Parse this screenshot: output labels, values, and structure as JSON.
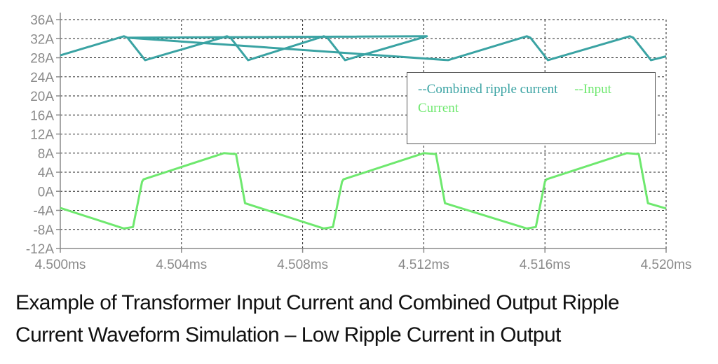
{
  "chart_data": {
    "type": "line",
    "xlabel": "",
    "ylabel": "",
    "x_ticks": [
      "4.500ms",
      "4.504ms",
      "4.508ms",
      "4.512ms",
      "4.516ms",
      "4.520ms"
    ],
    "y_ticks": [
      "36A",
      "32A",
      "28A",
      "24A",
      "20A",
      "16A",
      "12A",
      "8A",
      "4A",
      "0A",
      "-4A",
      "-8A",
      "-12A"
    ],
    "xlim": [
      4.5,
      4.52
    ],
    "ylim": [
      -12,
      36
    ],
    "grid": true,
    "legend": {
      "placement": "upper-right",
      "line1": "--Combined ripple current      --Input",
      "line2": "Current"
    },
    "series": [
      {
        "name": "Combined ripple current",
        "color": "#3aa3a3",
        "x": [
          4.5,
          4.5021,
          4.50222,
          4.5028,
          4.5055,
          4.50562,
          4.5062,
          4.5087,
          4.50882,
          4.5094,
          4.5121,
          4.50222,
          4.5128,
          4.5154,
          4.51552,
          4.5161,
          4.5188,
          4.51892,
          4.5195,
          4.52
        ],
        "y": [
          28.5,
          32.5,
          32.2,
          27.5,
          32.5,
          32.2,
          27.5,
          32.5,
          32.2,
          27.5,
          32.5,
          32.2,
          27.5,
          32.5,
          32.2,
          27.5,
          32.5,
          32.2,
          27.5,
          28.3
        ]
      },
      {
        "name": "Input Current",
        "color": "#6ee86e",
        "x": [
          4.5,
          4.5021,
          4.5024,
          4.5027,
          4.50275,
          4.5054,
          4.5058,
          4.5061,
          4.5087,
          4.509,
          4.5093,
          4.50935,
          4.512,
          4.5124,
          4.5127,
          4.5154,
          4.5157,
          4.516,
          4.51605,
          4.5187,
          4.5191,
          4.5194,
          4.52
        ],
        "y": [
          -3.5,
          -7.8,
          -7.5,
          2,
          2.5,
          8,
          7.8,
          -2.5,
          -7.8,
          -7.5,
          2,
          2.5,
          8,
          7.8,
          -2.5,
          -7.8,
          -7.5,
          2,
          2.5,
          8,
          7.8,
          -2.5,
          -3.6
        ]
      }
    ]
  },
  "caption": {
    "line1": "Example of Transformer Input Current and Combined Output Ripple",
    "line2": "Current Waveform Simulation – Low Ripple Current in Output"
  }
}
